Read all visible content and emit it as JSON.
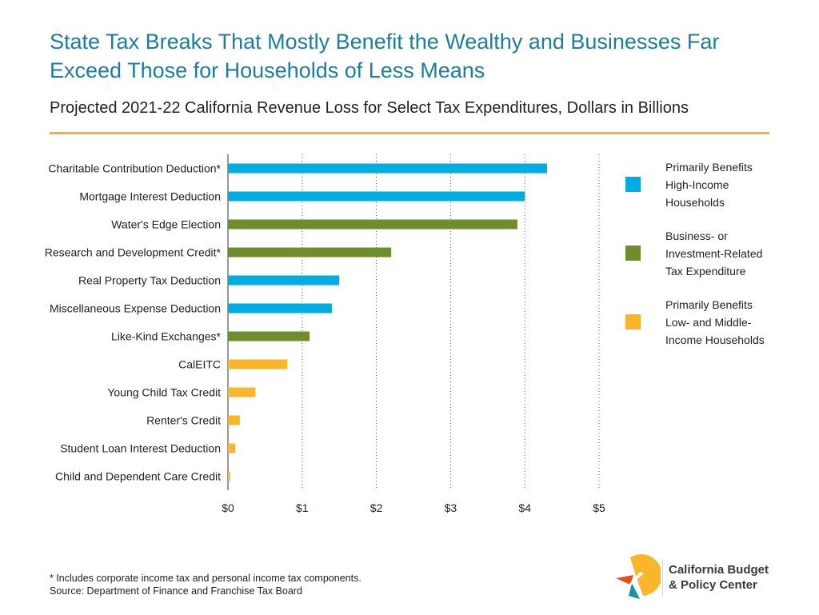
{
  "title": "State Tax Breaks That Mostly Benefit the Wealthy and Businesses Far Exceed Those for Households of Less Means",
  "subtitle": "Projected 2021-22 California Revenue Loss for Select Tax Expenditures, Dollars in Billions",
  "colors": {
    "high_income": "#00ade2",
    "business": "#6e8e2e",
    "low_middle": "#f9b62b",
    "title": "#1b7da0",
    "rule": "#f5b324"
  },
  "chart_data": {
    "type": "bar",
    "orientation": "horizontal",
    "unit": "Dollars in Billions",
    "xlim": [
      0,
      5
    ],
    "x_ticks": [
      "$0",
      "$1",
      "$2",
      "$3",
      "$4",
      "$5"
    ],
    "grid": "vertical dotted",
    "legend_placement": "right",
    "categories": [
      "Charitable Contribution Deduction*",
      "Mortgage Interest Deduction",
      "Water's Edge Election",
      "Research and Development Credit*",
      "Real Property Tax Deduction",
      "Miscellaneous Expense Deduction",
      "Like-Kind Exchanges*",
      "CalEITC",
      "Young Child Tax Credit",
      "Renter's Credit",
      "Student Loan Interest Deduction",
      "Child and Dependent Care Credit"
    ],
    "values": [
      4.3,
      4.0,
      3.9,
      2.2,
      1.5,
      1.4,
      1.1,
      0.8,
      0.37,
      0.16,
      0.1,
      0.03
    ],
    "groups": [
      "high_income",
      "high_income",
      "business",
      "business",
      "high_income",
      "high_income",
      "business",
      "low_middle",
      "low_middle",
      "low_middle",
      "low_middle",
      "low_middle"
    ],
    "legend": [
      {
        "key": "high_income",
        "label": "Primarily Benefits\nHigh-Income\nHouseholds"
      },
      {
        "key": "business",
        "label": "Business- or\nInvestment-Related\nTax Expenditure"
      },
      {
        "key": "low_middle",
        "label": "Primarily Benefits\nLow- and Middle-\nIncome Households"
      }
    ]
  },
  "footnote": {
    "line1": "* Includes corporate income tax and personal income tax components.",
    "line2": "Source: Department of Finance and Franchise Tax Board"
  },
  "logo": {
    "line1": "California Budget",
    "line2": "& Policy Center"
  }
}
